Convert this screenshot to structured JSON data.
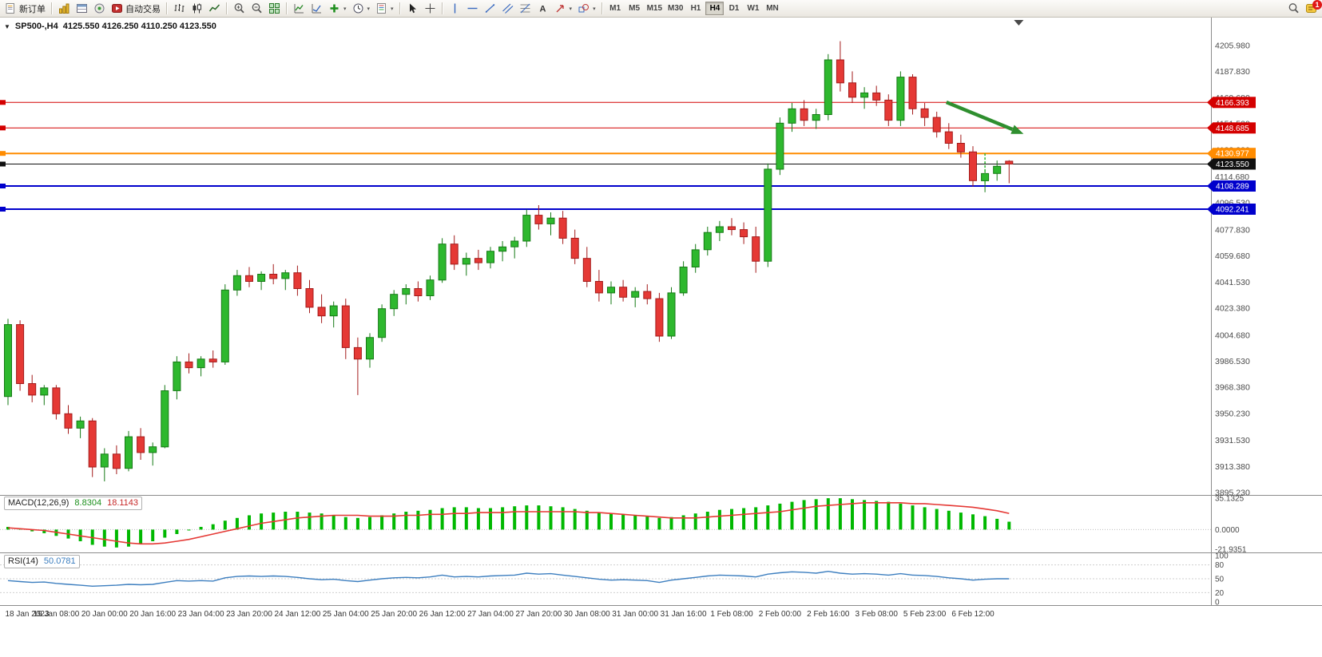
{
  "toolbar": {
    "new_order_label": "新订单",
    "autotrading_label": "自动交易",
    "timeframes": [
      {
        "label": "M1"
      },
      {
        "label": "M5"
      },
      {
        "label": "M15"
      },
      {
        "label": "M30"
      },
      {
        "label": "H1"
      },
      {
        "label": "H4"
      },
      {
        "label": "D1"
      },
      {
        "label": "W1"
      },
      {
        "label": "MN"
      }
    ],
    "active_timeframe": "H4",
    "notification_count": "1"
  },
  "chart": {
    "title_symbol": "SP500-,H4",
    "title_ohlc": "4125.550 4126.250 4110.250 4123.550"
  },
  "chart_data": {
    "type": "candlestick",
    "symbol": "SP500-",
    "timeframe": "H4",
    "ohlc_readout": {
      "open": "4125.550",
      "high": "4126.250",
      "low": "4110.250",
      "close": "4123.550"
    },
    "current_price": 4123.55,
    "style": {
      "up": "#2eb82e",
      "down": "#e53935",
      "up_dark": "#157a15",
      "down_dark": "#a31b1b"
    },
    "price_range": [
      3886,
      4212
    ],
    "y_axis_labels": [
      {
        "t": "4205.980",
        "p": 4205.98
      },
      {
        "t": "4187.830",
        "p": 4187.83
      },
      {
        "t": "4169.680",
        "p": 4169.68
      },
      {
        "t": "4151.530",
        "p": 4151.53
      },
      {
        "t": "4133.380",
        "p": 4133.38
      },
      {
        "t": "4114.680",
        "p": 4114.68
      },
      {
        "t": "4096.530",
        "p": 4096.53
      },
      {
        "t": "4077.830",
        "p": 4077.83
      },
      {
        "t": "4059.680",
        "p": 4059.68
      },
      {
        "t": "4041.530",
        "p": 4041.53
      },
      {
        "t": "4023.380",
        "p": 4023.38
      },
      {
        "t": "4004.680",
        "p": 4004.68
      },
      {
        "t": "3986.530",
        "p": 3986.53
      },
      {
        "t": "3968.380",
        "p": 3968.38
      },
      {
        "t": "3950.230",
        "p": 3950.23
      },
      {
        "t": "3931.530",
        "p": 3931.53
      },
      {
        "t": "3913.380",
        "p": 3913.38
      },
      {
        "t": "3895.230",
        "p": 3895.23
      }
    ],
    "horizontal_lines": [
      {
        "price": 4166.393,
        "label": "4166.393",
        "color": "#d40000",
        "width": 1
      },
      {
        "price": 4148.685,
        "label": "4148.685",
        "color": "#d40000",
        "width": 1
      },
      {
        "price": 4130.977,
        "label": "4130.977",
        "color": "#ff8c00",
        "width": 2
      },
      {
        "price": 4123.55,
        "label": "4123.550",
        "color": "#111111",
        "width": 1,
        "is_current_price": true
      },
      {
        "price": 4108.289,
        "label": "4108.289",
        "color": "#0000cc",
        "width": 2
      },
      {
        "price": 4092.241,
        "label": "4092.241",
        "color": "#0000cc",
        "width": 2
      }
    ],
    "x_label_every": 4,
    "x_labels": [
      "18 Jan 2023",
      "19 Jan 08:00",
      "20 Jan 00:00",
      "20 Jan 16:00",
      "23 Jan 04:00",
      "23 Jan 20:00",
      "24 Jan 12:00",
      "25 Jan 04:00",
      "25 Jan 20:00",
      "26 Jan 12:00",
      "27 Jan 04:00",
      "27 Jan 20:00",
      "30 Jan 08:00",
      "31 Jan 00:00",
      "31 Jan 16:00",
      "1 Feb 08:00",
      "2 Feb 00:00",
      "2 Feb 16:00",
      "3 Feb 08:00",
      "5 Feb 23:00",
      "6 Feb 12:00"
    ],
    "candles": [
      [
        3962,
        4016,
        3956,
        4012
      ],
      [
        4012,
        4015,
        3966,
        3971
      ],
      [
        3971,
        3977,
        3958,
        3963
      ],
      [
        3963,
        3970,
        3956,
        3968
      ],
      [
        3968,
        3970,
        3946,
        3950
      ],
      [
        3950,
        3956,
        3936,
        3940
      ],
      [
        3940,
        3948,
        3933,
        3945
      ],
      [
        3945,
        3947,
        3906,
        3913
      ],
      [
        3913,
        3926,
        3903,
        3922
      ],
      [
        3922,
        3928,
        3908,
        3912
      ],
      [
        3912,
        3938,
        3910,
        3934
      ],
      [
        3934,
        3940,
        3918,
        3923
      ],
      [
        3923,
        3930,
        3914,
        3927
      ],
      [
        3927,
        3970,
        3926,
        3966
      ],
      [
        3966,
        3990,
        3960,
        3986
      ],
      [
        3986,
        3992,
        3978,
        3982
      ],
      [
        3982,
        3990,
        3976,
        3988
      ],
      [
        3988,
        3994,
        3982,
        3986
      ],
      [
        3986,
        4040,
        3984,
        4036
      ],
      [
        4036,
        4050,
        4032,
        4046
      ],
      [
        4046,
        4052,
        4038,
        4042
      ],
      [
        4042,
        4049,
        4036,
        4047
      ],
      [
        4047,
        4054,
        4040,
        4044
      ],
      [
        4044,
        4050,
        4036,
        4048
      ],
      [
        4048,
        4053,
        4032,
        4037
      ],
      [
        4037,
        4043,
        4020,
        4024
      ],
      [
        4024,
        4033,
        4013,
        4018
      ],
      [
        4018,
        4028,
        4010,
        4025
      ],
      [
        4025,
        4030,
        3988,
        3996
      ],
      [
        3996,
        4003,
        3963,
        3988
      ],
      [
        3988,
        4006,
        3982,
        4003
      ],
      [
        4003,
        4026,
        4000,
        4023
      ],
      [
        4023,
        4036,
        4018,
        4033
      ],
      [
        4033,
        4040,
        4026,
        4037
      ],
      [
        4037,
        4042,
        4028,
        4032
      ],
      [
        4032,
        4046,
        4029,
        4043
      ],
      [
        4043,
        4072,
        4041,
        4068
      ],
      [
        4068,
        4074,
        4050,
        4054
      ],
      [
        4054,
        4062,
        4046,
        4058
      ],
      [
        4058,
        4064,
        4050,
        4055
      ],
      [
        4055,
        4066,
        4051,
        4063
      ],
      [
        4063,
        4070,
        4056,
        4066
      ],
      [
        4066,
        4073,
        4058,
        4070
      ],
      [
        4070,
        4092,
        4066,
        4088
      ],
      [
        4088,
        4095,
        4078,
        4082
      ],
      [
        4082,
        4090,
        4074,
        4086
      ],
      [
        4086,
        4091,
        4068,
        4072
      ],
      [
        4072,
        4078,
        4054,
        4058
      ],
      [
        4058,
        4066,
        4038,
        4042
      ],
      [
        4042,
        4050,
        4028,
        4034
      ],
      [
        4034,
        4042,
        4026,
        4038
      ],
      [
        4038,
        4043,
        4028,
        4031
      ],
      [
        4031,
        4038,
        4024,
        4035
      ],
      [
        4035,
        4040,
        4026,
        4030
      ],
      [
        4030,
        4034,
        4000,
        4004
      ],
      [
        4004,
        4038,
        4002,
        4034
      ],
      [
        4034,
        4056,
        4032,
        4052
      ],
      [
        4052,
        4068,
        4048,
        4064
      ],
      [
        4064,
        4080,
        4060,
        4076
      ],
      [
        4076,
        4084,
        4070,
        4080
      ],
      [
        4080,
        4086,
        4074,
        4078
      ],
      [
        4078,
        4083,
        4068,
        4073
      ],
      [
        4073,
        4080,
        4048,
        4056
      ],
      [
        4056,
        4124,
        4052,
        4120
      ],
      [
        4120,
        4156,
        4116,
        4152
      ],
      [
        4152,
        4166,
        4146,
        4162
      ],
      [
        4162,
        4168,
        4150,
        4154
      ],
      [
        4154,
        4162,
        4148,
        4158
      ],
      [
        4158,
        4200,
        4154,
        4196
      ],
      [
        4196,
        4209,
        4174,
        4180
      ],
      [
        4180,
        4188,
        4166,
        4170
      ],
      [
        4170,
        4177,
        4162,
        4173
      ],
      [
        4173,
        4178,
        4164,
        4168
      ],
      [
        4168,
        4172,
        4150,
        4154
      ],
      [
        4154,
        4188,
        4150,
        4184
      ],
      [
        4184,
        4186,
        4158,
        4162
      ],
      [
        4162,
        4166,
        4150,
        4156
      ],
      [
        4156,
        4160,
        4142,
        4146
      ],
      [
        4146,
        4152,
        4134,
        4138
      ],
      [
        4138,
        4144,
        4128,
        4132
      ],
      [
        4132,
        4136,
        4108,
        4112
      ],
      [
        4112,
        4120,
        4104,
        4117
      ],
      [
        4117,
        4126,
        4112,
        4122
      ],
      [
        4125.55,
        4126.25,
        4110.25,
        4123.55
      ]
    ],
    "indicators": [
      {
        "name": "MACD",
        "params": "(12,26,9)",
        "label": "MACD(12,26,9)",
        "main_value": "8.8304",
        "signal_value": "18.1143",
        "histogram_color": "#00b800",
        "signal_color": "#e53935",
        "range": [
          -21.9351,
          35.1325
        ],
        "axis_labels": [
          {
            "t": "35.1325",
            "v": 35.1325
          },
          {
            "t": "0.0000",
            "v": 0
          },
          {
            "t": "-21.9351",
            "v": -21.9351
          }
        ],
        "histogram": [
          3,
          1,
          -2,
          -4,
          -7,
          -10,
          -13,
          -17,
          -19,
          -20,
          -19,
          -16,
          -13,
          -9,
          -5,
          -1,
          3,
          6,
          10,
          13,
          16,
          18,
          19,
          20,
          20,
          19,
          18,
          16,
          14,
          13,
          14,
          16,
          18,
          20,
          21,
          22,
          24,
          25,
          25,
          24,
          24,
          25,
          26,
          27,
          27,
          26,
          25,
          23,
          21,
          19,
          18,
          17,
          16,
          15,
          13,
          14,
          16,
          18,
          20,
          22,
          23,
          24,
          25,
          27,
          29,
          31,
          33,
          34,
          35,
          35,
          34,
          33,
          32,
          31,
          29,
          27,
          25,
          23,
          21,
          19,
          17,
          15,
          12,
          8.83
        ],
        "signal": [
          2,
          1,
          0,
          -1,
          -3,
          -5,
          -7,
          -9,
          -11,
          -13,
          -15,
          -16,
          -16,
          -15,
          -13,
          -11,
          -8,
          -5,
          -2,
          1,
          4,
          7,
          9,
          11,
          13,
          14,
          15,
          16,
          16,
          16,
          15,
          15,
          15,
          16,
          16,
          17,
          17,
          18,
          18,
          19,
          19,
          19,
          20,
          20,
          20,
          20,
          20,
          20,
          19,
          19,
          18,
          17,
          16,
          15,
          14,
          13,
          13,
          13,
          14,
          15,
          16,
          17,
          18,
          19,
          20,
          22,
          24,
          26,
          27,
          28,
          29,
          30,
          30,
          30,
          30,
          29,
          29,
          28,
          27,
          26,
          25,
          23,
          21,
          18.11
        ]
      },
      {
        "name": "RSI",
        "params": "(14)",
        "label": "RSI(14)",
        "value": "50.0781",
        "line_color": "#3c7ebf",
        "range": [
          0,
          100
        ],
        "levels": [
          80,
          50,
          20
        ],
        "axis_labels": [
          {
            "t": "100",
            "v": 100
          },
          {
            "t": "80",
            "v": 80
          },
          {
            "t": "50",
            "v": 50
          },
          {
            "t": "20",
            "v": 20
          },
          {
            "t": "0",
            "v": 0
          }
        ],
        "line": [
          46,
          44,
          42,
          43,
          40,
          38,
          36,
          34,
          35,
          36,
          38,
          37,
          38,
          42,
          46,
          45,
          46,
          45,
          52,
          55,
          56,
          55,
          56,
          55,
          53,
          50,
          48,
          49,
          46,
          44,
          47,
          50,
          52,
          53,
          52,
          54,
          58,
          54,
          55,
          54,
          56,
          57,
          58,
          62,
          60,
          61,
          58,
          55,
          52,
          49,
          47,
          48,
          47,
          46,
          42,
          47,
          50,
          53,
          56,
          58,
          57,
          56,
          54,
          60,
          63,
          65,
          64,
          62,
          66,
          62,
          60,
          61,
          60,
          58,
          61,
          58,
          57,
          55,
          52,
          50,
          47,
          49,
          50,
          50.08
        ]
      }
    ],
    "annotations": {
      "arrow": {
        "from": {
          "bar": 77.8,
          "price": 4166.5
        },
        "to": {
          "bar": 84.2,
          "price": 4144.5
        },
        "color": "#2f8f2f"
      },
      "order_marker": {
        "bar": 81,
        "price_from": 4131,
        "price_to": 4110,
        "color": "#2eb82e"
      },
      "shift_marker": {
        "bar": 83.8
      }
    }
  }
}
